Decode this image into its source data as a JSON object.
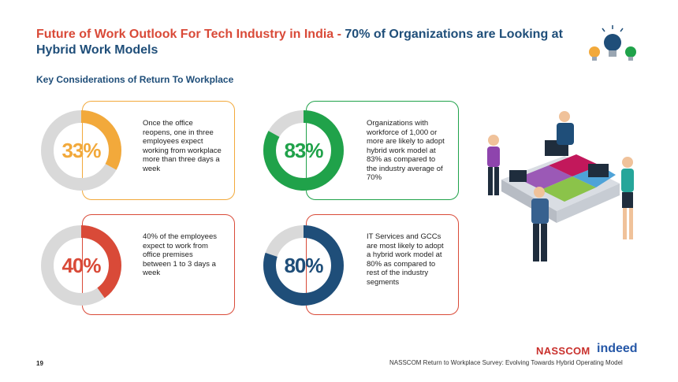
{
  "header": {
    "title_red": "Future of Work Outlook For Tech Industry in India - ",
    "title_blue": "70% of Organizations are Looking at Hybrid Work Models",
    "subtitle": "Key Considerations of Return To Workplace"
  },
  "cards": [
    {
      "percent_label": "33%",
      "percent": 33,
      "color": "#f2a93b",
      "text": "Once the office reopens, one in three employees expect working from workplace more than three days a week"
    },
    {
      "percent_label": "83%",
      "percent": 83,
      "color": "#20a24a",
      "text": "Organizations with workforce of 1,000 or more are likely to adopt hybrid work model at 83% as compared to the industry average of 70%"
    },
    {
      "percent_label": "40%",
      "percent": 40,
      "color": "#d94a38",
      "text": "40% of the employees expect to work from office premises between 1 to 3 days a week"
    },
    {
      "percent_label": "80%",
      "percent": 80,
      "color": "#1f4e79",
      "text": "IT Services and GCCs are most likely to adopt a hybrid work model at 80% as compared to rest of the industry segments"
    }
  ],
  "colors": {
    "track": "#d9d9d9",
    "title_blue": "#1f4e79",
    "title_red": "#d94a38"
  },
  "footer": {
    "page_number": "19",
    "logo_nasscom": "NASSCOM",
    "logo_indeed": "indeed",
    "source": "NASSCOM Return to Workplace Survey: Evolving Towards Hybrid Operating Model"
  }
}
